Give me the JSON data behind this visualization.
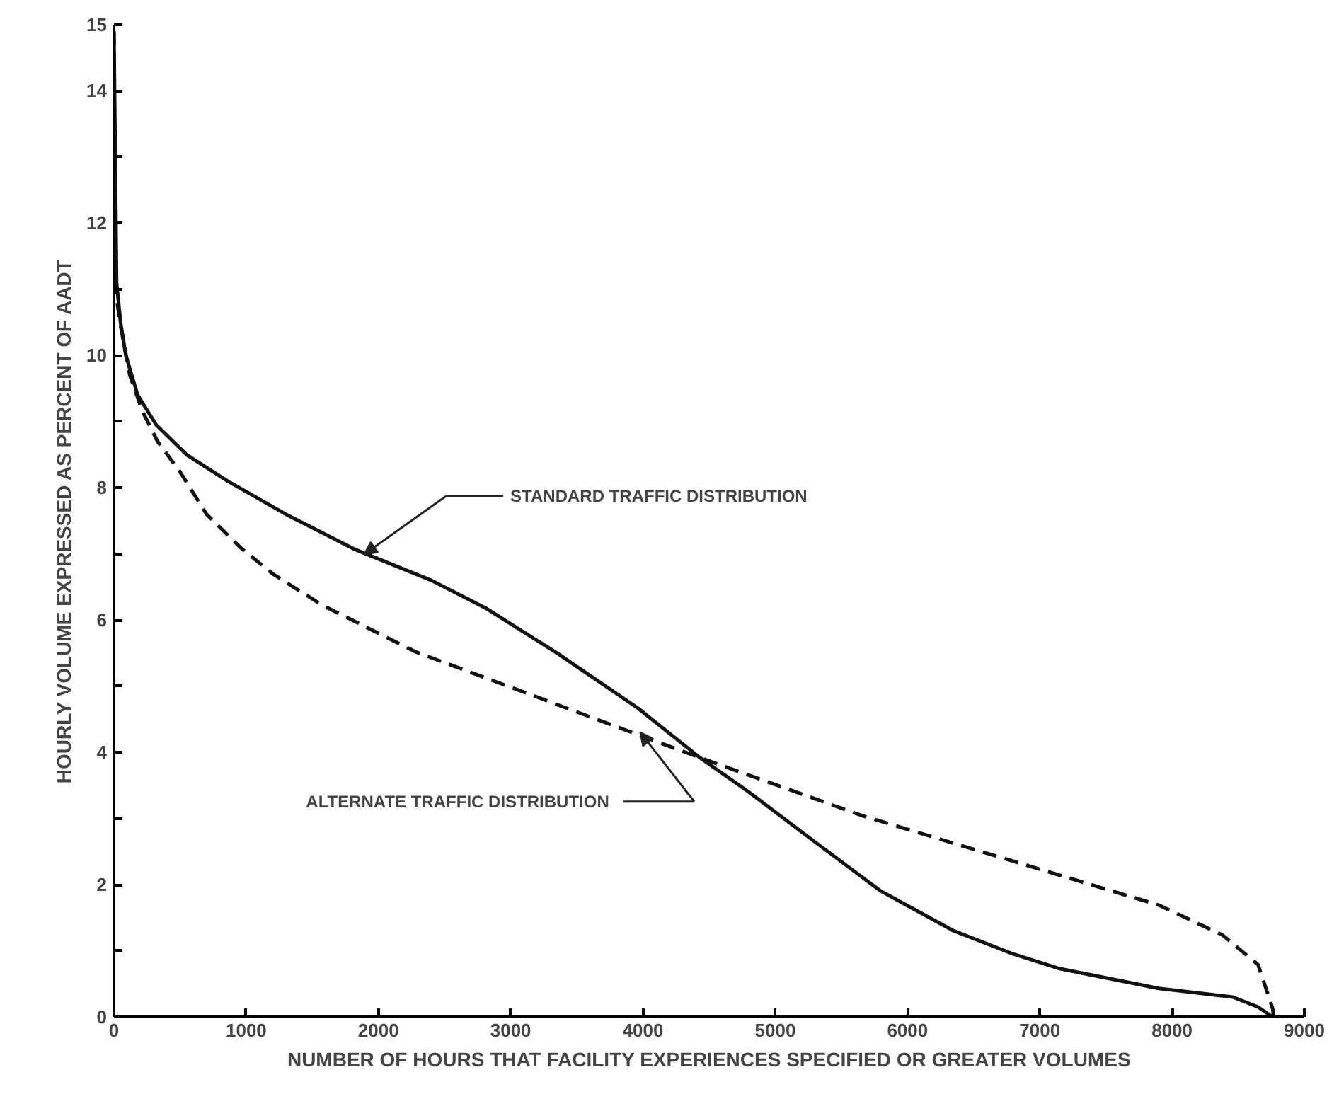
{
  "chart_data": {
    "type": "line",
    "xlabel": "NUMBER OF HOURS THAT FACILITY EXPERIENCES SPECIFIED OR GREATER VOLUMES",
    "ylabel": "HOURLY VOLUME EXPRESSED AS PERCENT OF AADT",
    "xlim": [
      0,
      9000
    ],
    "ylim": [
      0,
      15
    ],
    "xticks": [
      0,
      1000,
      2000,
      3000,
      4000,
      5000,
      6000,
      7000,
      8000,
      9000
    ],
    "yticks": [
      0,
      {
        "value": 1,
        "label": null
      },
      2,
      {
        "value": 3,
        "label": null
      },
      4,
      {
        "value": 5,
        "label": null
      },
      6,
      {
        "value": 7,
        "label": null
      },
      8,
      {
        "value": 9,
        "label": null
      },
      10,
      {
        "value": 11,
        "label": null
      },
      12,
      {
        "value": 13,
        "label": null
      },
      14,
      15
    ],
    "grid": false,
    "marker": "none",
    "series": [
      {
        "color": "#111111",
        "line_style": "solid",
        "x": [
          0,
          20,
          50,
          90,
          180,
          320,
          550,
          860,
          1300,
          1820,
          2400,
          2820,
          3350,
          3960,
          4430,
          4800,
          5290,
          5800,
          6340,
          6800,
          7150,
          7900,
          8460,
          8650,
          8760
        ],
        "values": [
          14.9,
          11.1,
          10.5,
          10.0,
          9.4,
          8.95,
          8.5,
          8.1,
          7.6,
          7.07,
          6.6,
          6.17,
          5.5,
          4.67,
          3.92,
          3.4,
          2.66,
          1.9,
          1.31,
          0.95,
          0.73,
          0.43,
          0.3,
          0.15,
          0
        ]
      },
      {
        "color": "#111111",
        "line_style": "dashed",
        "x": [
          0,
          10,
          50,
          120,
          215,
          330,
          500,
          700,
          960,
          1200,
          1570,
          2280,
          3180,
          3420,
          4430,
          5660,
          6790,
          7900,
          8380,
          8650,
          8760,
          8770
        ],
        "values": [
          14.9,
          11.0,
          10.45,
          9.7,
          9.16,
          8.7,
          8.24,
          7.6,
          7.09,
          6.7,
          6.23,
          5.52,
          4.85,
          4.67,
          3.92,
          3.04,
          2.36,
          1.69,
          1.24,
          0.79,
          0.13,
          0
        ]
      }
    ],
    "annotations": [
      "STANDARD TRAFFIC DISTRIBUTION",
      "ALTERNATE TRAFFIC DISTRIBUTION"
    ]
  }
}
